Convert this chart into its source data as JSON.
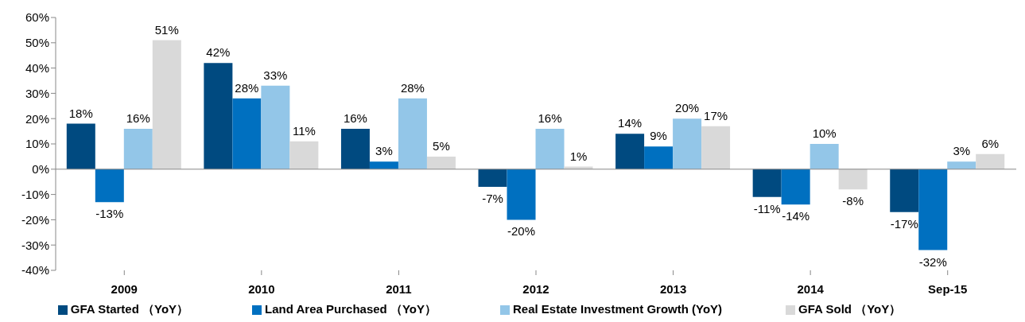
{
  "chart_data": {
    "type": "bar",
    "categories": [
      "2009",
      "2010",
      "2011",
      "2012",
      "2013",
      "2014",
      "Sep-15"
    ],
    "series": [
      {
        "name": "GFA Started （YoY）",
        "color": "#004a80",
        "values": [
          18,
          42,
          16,
          -7,
          14,
          -11,
          -17
        ],
        "value_labels": [
          "18%",
          "42%",
          "16%",
          "-7%",
          "14%",
          "-11%",
          "-17%"
        ]
      },
      {
        "name": "Land Area Purchased （YoY）",
        "color": "#0070c0",
        "values": [
          -13,
          28,
          3,
          -20,
          9,
          -14,
          -32
        ],
        "value_labels": [
          "-13%",
          "28%",
          "3%",
          "-20%",
          "9%",
          "-14%",
          "-32%"
        ]
      },
      {
        "name": "Real Estate Investment Growth (YoY)",
        "color": "#93c6e8",
        "values": [
          16,
          33,
          28,
          16,
          20,
          10,
          3
        ],
        "value_labels": [
          "16%",
          "33%",
          "28%",
          "16%",
          "20%",
          "10%",
          "3%"
        ]
      },
      {
        "name": "GFA Sold （YoY）",
        "color": "#d9d9d9",
        "values": [
          51,
          11,
          5,
          1,
          17,
          -8,
          6
        ],
        "value_labels": [
          "51%",
          "11%",
          "5%",
          "1%",
          "17%",
          "-8%",
          "6%"
        ]
      }
    ],
    "ylim": [
      -40,
      60
    ],
    "yticks": [
      {
        "value": -40,
        "label": "-40%"
      },
      {
        "value": -30,
        "label": "-30%"
      },
      {
        "value": -20,
        "label": "-20%"
      },
      {
        "value": -10,
        "label": "-10%"
      },
      {
        "value": 0,
        "label": "0%"
      },
      {
        "value": 10,
        "label": "10%"
      },
      {
        "value": 20,
        "label": "20%"
      },
      {
        "value": 30,
        "label": "30%"
      },
      {
        "value": 40,
        "label": "40%"
      },
      {
        "value": 50,
        "label": "50%"
      },
      {
        "value": 60,
        "label": "60%"
      }
    ],
    "legend": "bottom"
  }
}
